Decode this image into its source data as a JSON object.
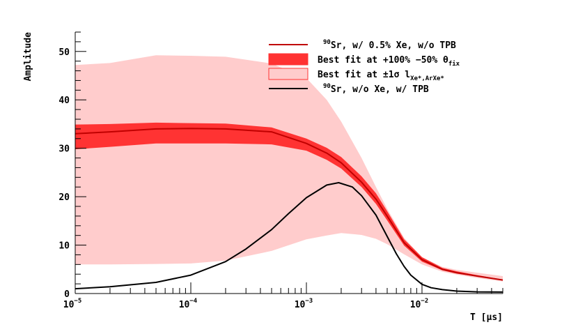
{
  "chart_data": {
    "type": "line",
    "title": "",
    "xlabel": "T [μs]",
    "ylabel": "Amplitude",
    "xscale": "log",
    "xlim": [
      1e-05,
      0.05
    ],
    "ylim": [
      0,
      54
    ],
    "grid": false,
    "legend_position": "top-right",
    "x_ticks": [
      {
        "value": 1e-05,
        "base": "10",
        "exp": "−5"
      },
      {
        "value": 0.0001,
        "base": "10",
        "exp": "−4"
      },
      {
        "value": 0.001,
        "base": "10",
        "exp": "−3"
      },
      {
        "value": 0.01,
        "base": "10",
        "exp": "−2"
      }
    ],
    "y_ticks": [
      "0",
      "10",
      "20",
      "30",
      "40",
      "50"
    ],
    "y_tick_values": [
      0,
      10,
      20,
      30,
      40,
      50
    ],
    "colors": {
      "red_line": "#c00000",
      "red_band": "#ff3333",
      "pink_band": "#ffcccc",
      "black_line": "#000000"
    },
    "legend": [
      {
        "kind": "line",
        "color": "#c00000",
        "sup": "90",
        "text": "Sr, w/ 0.5% Xe, w/o TPB"
      },
      {
        "kind": "band",
        "color": "#ff3333",
        "text": "Best fit at +100% −50% θ",
        "sub": "fix"
      },
      {
        "kind": "band",
        "color": "#ffcccc",
        "text": "Best fit at ±1σ l",
        "sub": "Xe*,ArXe*"
      },
      {
        "kind": "line",
        "color": "#000000",
        "sup": "90",
        "text": "Sr,      w/o Xe,  w/ TPB"
      }
    ],
    "series": [
      {
        "name": "90Sr, w/ 0.5% Xe, w/o TPB",
        "style": "line",
        "x": [
          1e-05,
          2e-05,
          5e-05,
          0.0001,
          0.0002,
          0.0005,
          0.001,
          0.0015,
          0.002,
          0.003,
          0.004,
          0.005,
          0.007,
          0.01,
          0.015,
          0.02,
          0.03,
          0.05
        ],
        "values": [
          33,
          33.4,
          34,
          34.1,
          34,
          33.4,
          31,
          29,
          27,
          23,
          19.5,
          16,
          10.5,
          7,
          5,
          4.3,
          3.6,
          2.8
        ]
      },
      {
        "name": "Best fit at +100% −50% θfix",
        "style": "band",
        "x": [
          1e-05,
          2e-05,
          5e-05,
          0.0001,
          0.0002,
          0.0005,
          0.001,
          0.0015,
          0.002,
          0.003,
          0.004,
          0.005,
          0.007,
          0.01,
          0.015,
          0.02,
          0.03,
          0.05
        ],
        "upper": [
          34.9,
          35.0,
          35.3,
          35.2,
          35.1,
          34.3,
          32.0,
          30.1,
          28.2,
          24.2,
          20.7,
          17.0,
          11.2,
          7.5,
          5.3,
          4.6,
          3.8,
          2.9
        ],
        "lower": [
          29.8,
          30.3,
          31.0,
          31.0,
          31.0,
          30.8,
          29.5,
          27.6,
          25.8,
          22.0,
          18.5,
          15.1,
          9.9,
          6.6,
          4.8,
          4.1,
          3.5,
          2.7
        ]
      },
      {
        "name": "Best fit at ±1σ lXe*,ArXe*",
        "style": "band",
        "x": [
          1e-05,
          2e-05,
          5e-05,
          0.0001,
          0.0002,
          0.0005,
          0.001,
          0.0015,
          0.002,
          0.003,
          0.004,
          0.005,
          0.007,
          0.01,
          0.015,
          0.02,
          0.03,
          0.05
        ],
        "upper": [
          47.2,
          47.6,
          49.2,
          49.1,
          48.9,
          47.5,
          44.5,
          40.0,
          35.5,
          28.0,
          22.0,
          17.5,
          11.5,
          7.5,
          5.5,
          4.9,
          4.3,
          3.6
        ],
        "lower": [
          6.0,
          6.0,
          6.1,
          6.2,
          6.8,
          8.8,
          11.2,
          12.0,
          12.5,
          12.1,
          11.3,
          10.2,
          8.1,
          6.0,
          4.5,
          3.9,
          3.2,
          2.5
        ]
      },
      {
        "name": "90Sr, w/o Xe, w/ TPB",
        "style": "line",
        "x": [
          1e-05,
          2e-05,
          5e-05,
          0.0001,
          0.0002,
          0.0003,
          0.0005,
          0.0007,
          0.001,
          0.0015,
          0.0019,
          0.0025,
          0.003,
          0.004,
          0.005,
          0.006,
          0.007,
          0.008,
          0.01,
          0.012,
          0.015,
          0.02,
          0.03,
          0.05
        ],
        "values": [
          1.0,
          1.4,
          2.3,
          3.8,
          6.6,
          9.2,
          13.2,
          16.5,
          19.8,
          22.4,
          22.9,
          22.0,
          20.2,
          16.2,
          11.8,
          8.2,
          5.6,
          3.8,
          1.9,
          1.2,
          0.8,
          0.5,
          0.35,
          0.3
        ]
      }
    ]
  }
}
